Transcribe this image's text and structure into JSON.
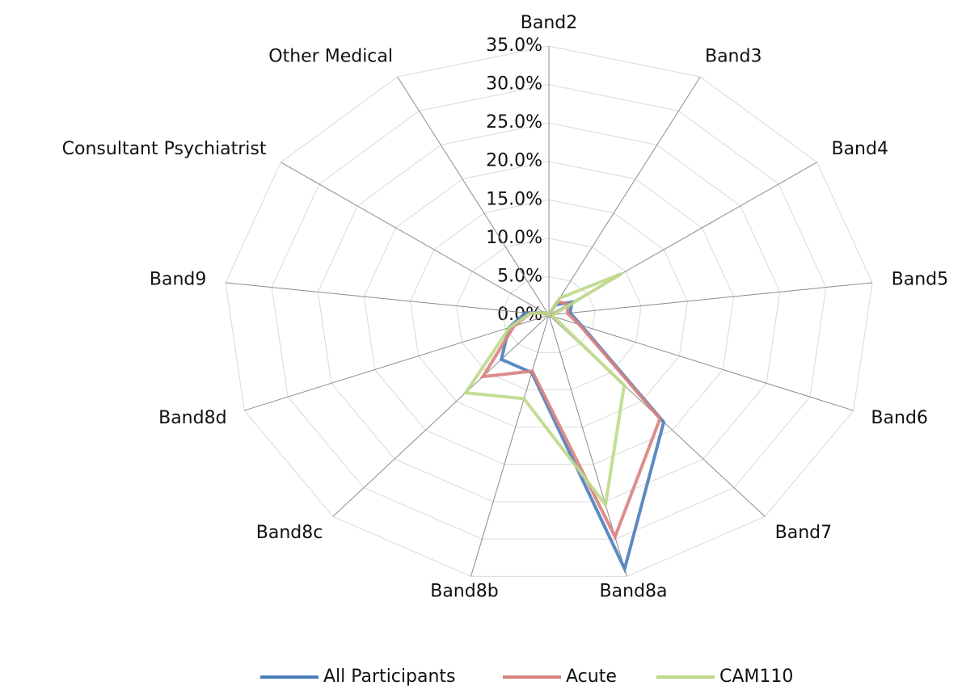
{
  "chart_data": {
    "type": "radar",
    "categories": [
      "Band2",
      "Band3",
      "Band4",
      "Band5",
      "Band6",
      "Band7",
      "Band8a",
      "Band8b",
      "Band8c",
      "Band8d",
      "Band9",
      "Consultant Psychiatrist",
      "Other Medical"
    ],
    "series": [
      {
        "name": "All Participants",
        "color": "#4a7ebb",
        "values": [
          0,
          1.5,
          3,
          2.3,
          3.7,
          18.6,
          34,
          7.7,
          7.7,
          4.6,
          2.5,
          0.5,
          0
        ]
      },
      {
        "name": "Acute",
        "color": "#d9827f",
        "values": [
          0,
          2,
          2.5,
          2,
          3.5,
          18,
          29.7,
          7.5,
          10.7,
          4,
          2,
          0.5,
          0
        ]
      },
      {
        "name": "CAM110",
        "color": "#bcd98a",
        "values": [
          0,
          2.5,
          9.5,
          0.5,
          0.5,
          12.2,
          25.4,
          11.2,
          13.5,
          4.5,
          2,
          0.5,
          0
        ]
      }
    ],
    "ylim": [
      0,
      35
    ],
    "yticks": [
      {
        "value": 0,
        "label": "0.0%"
      },
      {
        "value": 5,
        "label": "5.0%"
      },
      {
        "value": 10,
        "label": "10.0%"
      },
      {
        "value": 15,
        "label": "15.0%"
      },
      {
        "value": 20,
        "label": "20.0%"
      },
      {
        "value": 25,
        "label": "25.0%"
      },
      {
        "value": 30,
        "label": "30.0%"
      },
      {
        "value": 35,
        "label": "35.0%"
      }
    ],
    "grid": true,
    "legend": "bottom"
  }
}
